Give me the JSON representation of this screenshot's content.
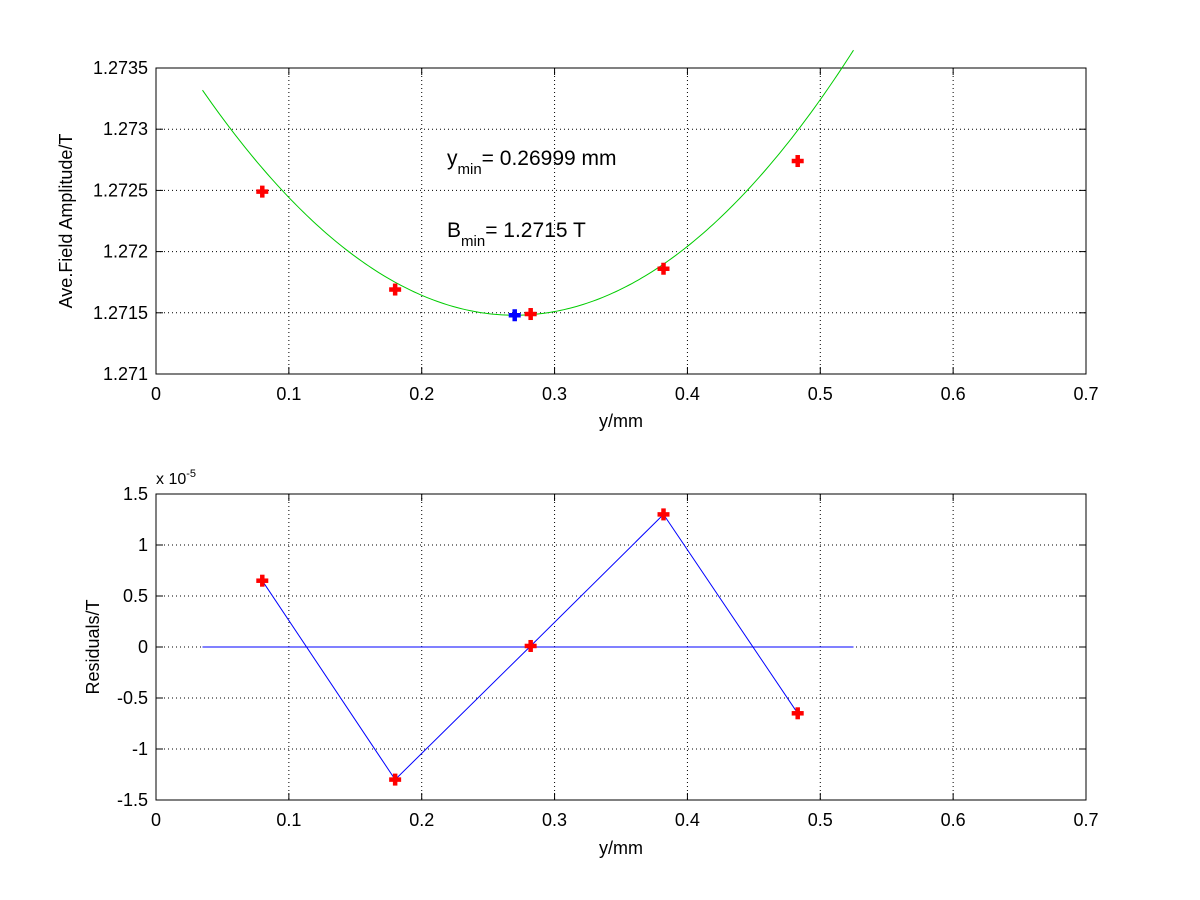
{
  "chart_data": [
    {
      "type": "scatter",
      "title": "",
      "xlabel": "y/mm",
      "ylabel": "Ave.Field Amplitude/T",
      "xlim": [
        0,
        0.7
      ],
      "ylim": [
        1.271,
        1.2735
      ],
      "grid": true,
      "xticks": [
        "0",
        "0.1",
        "0.2",
        "0.3",
        "0.4",
        "0.5",
        "0.6",
        "0.7"
      ],
      "yticks": [
        "1.271",
        "1.2715",
        "1.272",
        "1.2725",
        "1.273",
        "1.2735"
      ],
      "fit_curve": {
        "color": "#00cc00",
        "x_range": [
          0.035,
          0.525
        ],
        "vertex_x": 0.26999,
        "vertex_y": 1.27148,
        "curvature": 0.0333
      },
      "series": [
        {
          "marker": "plus",
          "color": "#ff0000",
          "x": [
            0.08,
            0.18,
            0.282,
            0.382,
            0.483
          ],
          "y": [
            1.27249,
            1.27169,
            1.27149,
            1.27186,
            1.27274
          ]
        },
        {
          "marker": "plus",
          "color": "#0000ff",
          "x": [
            0.27
          ],
          "y": [
            1.27148
          ]
        }
      ],
      "annotations": {
        "ymin": {
          "main": "y",
          "sub": "min",
          "value": "= 0.26999 mm"
        },
        "bmin": {
          "main": "B",
          "sub": "min",
          "value": "= 1.2715 T"
        }
      }
    },
    {
      "type": "line",
      "title": "",
      "xlabel": "y/mm",
      "ylabel": "Residuals/T",
      "xlim": [
        0,
        0.7
      ],
      "ylim": [
        -1.5,
        1.5
      ],
      "grid": true,
      "xticks": [
        "0",
        "0.1",
        "0.2",
        "0.3",
        "0.4",
        "0.5",
        "0.6",
        "0.7"
      ],
      "yticks": [
        "-1.5",
        "-1",
        "-0.5",
        "0",
        "0.5",
        "1",
        "1.5"
      ],
      "y_exponent": {
        "base": "x 10",
        "power": "-5"
      },
      "zero_line": {
        "color": "#0000ff",
        "x_range": [
          0.035,
          0.525
        ]
      },
      "series": [
        {
          "marker": "plus",
          "color": "#ff0000",
          "line_color": "#0000ff",
          "x": [
            0.08,
            0.18,
            0.282,
            0.382,
            0.483
          ],
          "y": [
            0.65,
            -1.3,
            0.01,
            1.3,
            -0.65
          ]
        }
      ]
    }
  ]
}
